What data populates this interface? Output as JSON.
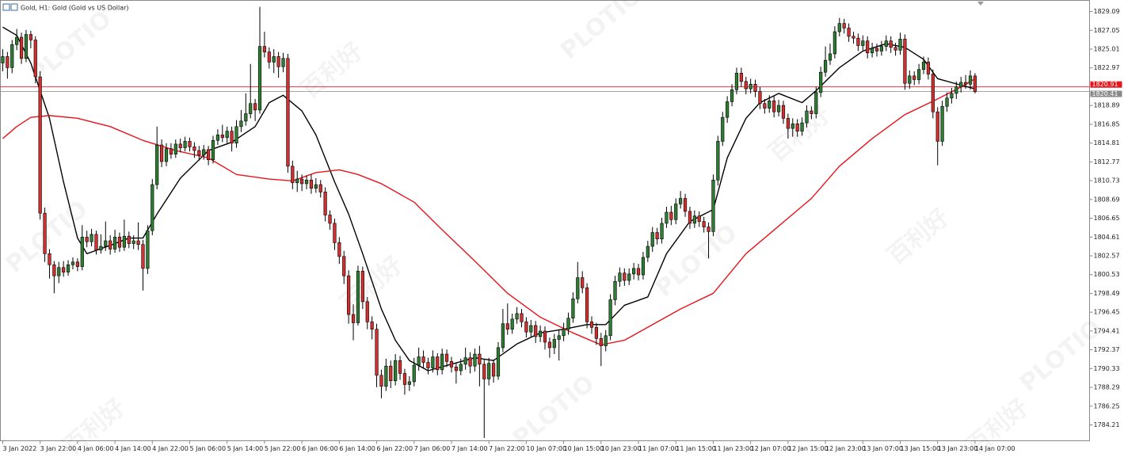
{
  "chart_data": {
    "type": "candlestick",
    "title": "Gold, H1:  Gold (Gold vs US Dollar)",
    "open": [
      1823.5,
      1824.2,
      1823.0,
      1825.5,
      1826.3,
      1824.0,
      1826.6,
      1826.0,
      1822.0,
      1807.2,
      1802.8,
      1801.6,
      1800.4,
      1801.3,
      1800.8,
      1801.6,
      1801.9,
      1801.4,
      1804.6,
      1804.1,
      1804.9,
      1803.2,
      1803.6,
      1804.2,
      1803.3,
      1804.6,
      1803.5,
      1804.7,
      1803.9,
      1804.2,
      1803.8,
      1801.2,
      1805.3,
      1810.3,
      1814.6,
      1812.8,
      1814.2,
      1813.6,
      1814.7,
      1814.3,
      1815.0,
      1814.4,
      1814.0,
      1813.5,
      1814.1,
      1813.0,
      1815.1,
      1815.7,
      1815.4,
      1816.1,
      1814.8,
      1816.6,
      1817.2,
      1818.0,
      1819.1,
      1818.4,
      1825.3,
      1824.7,
      1823.6,
      1824.2,
      1823.1,
      1824.0,
      1812.3,
      1810.5,
      1810.9,
      1810.4,
      1810.8,
      1809.9,
      1810.3,
      1809.5,
      1807.0,
      1806.1,
      1804.0,
      1802.5,
      1800.4,
      1796.2,
      1795.3,
      1800.9,
      1797.6,
      1795.4,
      1794.6,
      1789.6,
      1788.4,
      1790.6,
      1789.0,
      1791.2,
      1789.8,
      1788.6,
      1788.9,
      1790.7,
      1791.6,
      1791.0,
      1790.4,
      1791.6,
      1790.2,
      1791.9,
      1791.1,
      1790.5,
      1790.1,
      1790.8,
      1791.5,
      1790.6,
      1791.9,
      1790.8,
      1789.2,
      1790.9,
      1789.5,
      1792.6,
      1795.2,
      1794.6,
      1795.7,
      1796.3,
      1795.4,
      1794.3,
      1795.0,
      1793.8,
      1794.4,
      1793.2,
      1792.6,
      1793.5,
      1793.9,
      1794.6,
      1795.8,
      1797.9,
      1800.2,
      1799.1,
      1795.4,
      1794.8,
      1793.6,
      1792.8,
      1793.9,
      1797.8,
      1799.8,
      1800.7,
      1799.9,
      1800.6,
      1801.2,
      1800.5,
      1802.4,
      1803.6,
      1805.1,
      1804.4,
      1806.1,
      1807.3,
      1806.5,
      1808.2,
      1808.8,
      1807.4,
      1806.1,
      1806.9,
      1806.3,
      1805.7,
      1805.2,
      1810.8,
      1815.0,
      1817.6,
      1819.3,
      1820.6,
      1822.4,
      1821.5,
      1820.7,
      1821.2,
      1820.4,
      1819.1,
      1818.6,
      1819.4,
      1818.2,
      1818.9,
      1817.5,
      1816.4,
      1816.9,
      1816.1,
      1817.0,
      1818.3,
      1818.0,
      1820.3,
      1822.5,
      1823.8,
      1824.5,
      1826.9,
      1827.8,
      1827.3,
      1826.4,
      1826.2,
      1825.4,
      1825.9,
      1824.6,
      1825.1,
      1824.8,
      1825.3,
      1825.9,
      1825.2,
      1824.9,
      1826.1,
      1821.3,
      1822.1,
      1821.7,
      1822.8,
      1823.6,
      1822.3,
      1818.2,
      1815.0,
      1818.8,
      1819.7,
      1820.2,
      1820.9,
      1821.4,
      1821.2,
      1822.1
    ],
    "high": [
      1825.0,
      1824.7,
      1826.0,
      1827.2,
      1826.8,
      1827.1,
      1827.0,
      1826.4,
      1822.6,
      1807.8,
      1803.3,
      1802.0,
      1801.9,
      1802.0,
      1802.1,
      1802.4,
      1802.3,
      1805.9,
      1805.3,
      1805.5,
      1805.3,
      1804.9,
      1806.3,
      1804.8,
      1805.4,
      1805.1,
      1806.5,
      1805.2,
      1804.8,
      1806.2,
      1804.3,
      1805.9,
      1810.9,
      1816.6,
      1815.2,
      1814.8,
      1814.8,
      1815.2,
      1815.3,
      1815.5,
      1815.4,
      1814.9,
      1814.5,
      1814.6,
      1814.5,
      1815.6,
      1816.3,
      1816.8,
      1816.6,
      1816.6,
      1817.3,
      1818.4,
      1820.2,
      1823.4,
      1819.6,
      1829.6,
      1826.9,
      1825.2,
      1825.0,
      1824.7,
      1824.6,
      1824.5,
      1812.9,
      1811.8,
      1811.4,
      1811.3,
      1811.4,
      1811.0,
      1810.8,
      1810.0,
      1807.5,
      1806.6,
      1804.6,
      1803.1,
      1801.0,
      1797.3,
      1801.5,
      1801.4,
      1798.1,
      1796.0,
      1795.2,
      1790.2,
      1791.4,
      1791.2,
      1791.9,
      1791.7,
      1790.3,
      1789.5,
      1791.5,
      1792.6,
      1792.3,
      1791.5,
      1792.3,
      1792.0,
      1792.5,
      1792.4,
      1791.6,
      1791.0,
      1791.4,
      1792.6,
      1792.1,
      1792.5,
      1792.8,
      1791.3,
      1791.5,
      1791.3,
      1793.2,
      1796.8,
      1797.4,
      1796.3,
      1797.0,
      1796.8,
      1795.9,
      1795.6,
      1795.5,
      1795.0,
      1794.9,
      1793.7,
      1794.1,
      1794.6,
      1795.3,
      1796.4,
      1798.6,
      1801.9,
      1800.9,
      1799.6,
      1796.0,
      1795.3,
      1794.2,
      1794.5,
      1798.4,
      1800.4,
      1801.3,
      1801.2,
      1801.2,
      1801.8,
      1801.7,
      1803.0,
      1804.2,
      1805.7,
      1805.6,
      1806.7,
      1807.9,
      1808.0,
      1808.8,
      1809.6,
      1809.3,
      1807.9,
      1807.5,
      1807.4,
      1806.8,
      1806.2,
      1811.4,
      1815.6,
      1818.2,
      1819.9,
      1821.2,
      1823.0,
      1823.0,
      1822.0,
      1821.8,
      1821.7,
      1820.9,
      1819.6,
      1820.0,
      1819.9,
      1819.5,
      1819.4,
      1818.0,
      1817.5,
      1817.4,
      1817.6,
      1818.9,
      1818.8,
      1820.9,
      1823.1,
      1825.3,
      1825.6,
      1827.5,
      1828.4,
      1828.3,
      1827.8,
      1826.9,
      1826.7,
      1826.5,
      1826.4,
      1825.7,
      1825.6,
      1825.9,
      1826.5,
      1826.4,
      1825.7,
      1826.8,
      1826.6,
      1822.7,
      1822.6,
      1823.4,
      1824.2,
      1824.1,
      1822.8,
      1818.7,
      1819.4,
      1820.3,
      1820.8,
      1821.5,
      1822.0,
      1822.2,
      1822.7,
      1822.4
    ],
    "low": [
      1822.6,
      1821.8,
      1822.4,
      1824.9,
      1823.4,
      1823.6,
      1825.1,
      1821.3,
      1806.5,
      1801.9,
      1800.1,
      1798.5,
      1799.6,
      1800.3,
      1800.4,
      1801.1,
      1800.9,
      1801.0,
      1803.5,
      1803.6,
      1802.7,
      1802.8,
      1803.1,
      1802.7,
      1802.9,
      1803.0,
      1803.1,
      1803.4,
      1803.3,
      1803.2,
      1798.8,
      1800.6,
      1804.8,
      1809.8,
      1812.2,
      1812.3,
      1813.1,
      1813.2,
      1813.8,
      1813.9,
      1813.9,
      1813.2,
      1812.9,
      1813.0,
      1812.4,
      1812.6,
      1814.6,
      1814.9,
      1814.8,
      1813.9,
      1814.3,
      1816.0,
      1816.7,
      1817.5,
      1817.2,
      1818.0,
      1824.1,
      1822.9,
      1822.4,
      1821.9,
      1822.5,
      1811.6,
      1809.8,
      1809.5,
      1809.6,
      1809.8,
      1809.3,
      1809.4,
      1808.9,
      1806.3,
      1805.4,
      1803.2,
      1801.7,
      1799.5,
      1795.2,
      1793.4,
      1795.0,
      1796.8,
      1794.6,
      1793.5,
      1788.3,
      1787.1,
      1787.9,
      1788.2,
      1788.5,
      1789.1,
      1787.5,
      1787.9,
      1788.4,
      1790.1,
      1790.4,
      1789.7,
      1789.9,
      1789.6,
      1789.7,
      1790.5,
      1789.9,
      1788.7,
      1789.6,
      1790.2,
      1789.8,
      1790.0,
      1788.4,
      1782.8,
      1788.5,
      1788.8,
      1789.1,
      1792.1,
      1794.0,
      1794.1,
      1795.2,
      1794.8,
      1793.7,
      1793.8,
      1793.1,
      1793.2,
      1792.4,
      1791.5,
      1791.9,
      1791.2,
      1793.3,
      1794.0,
      1795.3,
      1797.4,
      1798.5,
      1794.7,
      1794.1,
      1792.9,
      1790.6,
      1792.2,
      1793.4,
      1797.2,
      1799.2,
      1799.3,
      1799.4,
      1800.0,
      1799.9,
      1800.0,
      1801.9,
      1803.0,
      1803.8,
      1803.9,
      1805.6,
      1805.9,
      1806.0,
      1807.7,
      1806.8,
      1805.5,
      1805.6,
      1805.7,
      1805.1,
      1802.3,
      1804.7,
      1810.2,
      1814.5,
      1817.0,
      1818.8,
      1820.1,
      1820.9,
      1820.1,
      1820.2,
      1819.8,
      1818.5,
      1818.0,
      1818.1,
      1817.6,
      1817.7,
      1816.9,
      1815.3,
      1815.5,
      1815.5,
      1815.6,
      1816.5,
      1817.4,
      1817.5,
      1819.8,
      1822.0,
      1823.3,
      1824.0,
      1826.4,
      1826.7,
      1825.8,
      1825.6,
      1824.8,
      1824.9,
      1824.0,
      1824.1,
      1824.2,
      1824.3,
      1824.8,
      1824.6,
      1824.3,
      1824.4,
      1820.6,
      1820.7,
      1821.1,
      1821.2,
      1822.3,
      1821.7,
      1817.5,
      1812.4,
      1814.5,
      1818.2,
      1819.1,
      1819.6,
      1820.3,
      1820.7,
      1820.6,
      1820.2
    ],
    "close": [
      1824.2,
      1823.0,
      1825.5,
      1826.3,
      1824.0,
      1826.6,
      1826.0,
      1822.0,
      1807.2,
      1802.8,
      1801.6,
      1800.4,
      1801.3,
      1800.8,
      1801.6,
      1801.9,
      1801.4,
      1804.6,
      1804.1,
      1804.9,
      1803.2,
      1803.6,
      1804.2,
      1803.3,
      1804.6,
      1803.5,
      1804.7,
      1803.9,
      1804.2,
      1803.8,
      1801.2,
      1805.3,
      1810.3,
      1814.6,
      1812.8,
      1814.2,
      1813.6,
      1814.7,
      1814.3,
      1815.0,
      1814.4,
      1814.0,
      1813.5,
      1814.1,
      1813.0,
      1815.1,
      1815.7,
      1815.4,
      1816.1,
      1814.8,
      1816.6,
      1817.2,
      1818.0,
      1819.1,
      1818.4,
      1825.3,
      1824.7,
      1823.6,
      1824.2,
      1823.1,
      1824.0,
      1812.3,
      1810.5,
      1810.9,
      1810.4,
      1810.8,
      1809.9,
      1810.3,
      1809.5,
      1807.0,
      1806.1,
      1804.0,
      1802.5,
      1800.4,
      1796.2,
      1795.3,
      1800.9,
      1797.6,
      1795.4,
      1794.6,
      1789.6,
      1788.4,
      1790.6,
      1789.0,
      1791.2,
      1789.8,
      1788.6,
      1788.9,
      1790.7,
      1791.6,
      1791.0,
      1790.4,
      1791.6,
      1790.2,
      1791.9,
      1791.1,
      1790.5,
      1790.1,
      1790.8,
      1791.5,
      1790.6,
      1791.9,
      1790.8,
      1789.2,
      1790.9,
      1789.5,
      1792.6,
      1795.2,
      1794.6,
      1795.7,
      1796.3,
      1795.4,
      1794.3,
      1795.0,
      1793.8,
      1794.4,
      1793.2,
      1792.6,
      1793.5,
      1793.9,
      1794.6,
      1795.8,
      1797.9,
      1800.2,
      1799.1,
      1795.4,
      1794.8,
      1793.6,
      1792.8,
      1793.9,
      1797.8,
      1799.8,
      1800.7,
      1799.9,
      1800.6,
      1801.2,
      1800.5,
      1802.4,
      1803.6,
      1805.1,
      1804.4,
      1806.1,
      1807.3,
      1806.5,
      1808.2,
      1808.8,
      1807.4,
      1806.1,
      1806.9,
      1806.3,
      1805.7,
      1805.2,
      1810.8,
      1815.0,
      1817.6,
      1819.3,
      1820.6,
      1822.4,
      1821.5,
      1820.7,
      1821.2,
      1820.4,
      1819.1,
      1818.6,
      1819.4,
      1818.2,
      1818.9,
      1817.5,
      1816.4,
      1816.9,
      1816.1,
      1817.0,
      1818.3,
      1818.0,
      1820.3,
      1822.5,
      1823.8,
      1824.5,
      1826.9,
      1827.8,
      1827.3,
      1826.4,
      1826.2,
      1825.4,
      1825.9,
      1824.6,
      1825.1,
      1824.8,
      1825.3,
      1825.9,
      1825.2,
      1824.9,
      1826.1,
      1821.3,
      1822.1,
      1821.7,
      1822.8,
      1823.6,
      1822.3,
      1818.2,
      1815.0,
      1818.8,
      1819.7,
      1820.2,
      1820.9,
      1821.4,
      1821.2,
      1822.1,
      1820.41
    ],
    "up_color": "#2e7d32",
    "down_color": "#d32f2f",
    "xlim": [
      -0.5,
      232.5
    ],
    "ylim": [
      1782.49,
      1830.3
    ],
    "xticks": [
      {
        "value": 0,
        "label": "3 Jan 2022"
      },
      {
        "value": 8,
        "label": "3 Jan 22:00"
      },
      {
        "value": 16,
        "label": "4 Jan 06:00"
      },
      {
        "value": 24,
        "label": "4 Jan 14:00"
      },
      {
        "value": 32,
        "label": "4 Jan 22:00"
      },
      {
        "value": 40,
        "label": "5 Jan 06:00"
      },
      {
        "value": 48,
        "label": "5 Jan 14:00"
      },
      {
        "value": 56,
        "label": "5 Jan 22:00"
      },
      {
        "value": 64,
        "label": "6 Jan 06:00"
      },
      {
        "value": 72,
        "label": "6 Jan 14:00"
      },
      {
        "value": 80,
        "label": "6 Jan 22:00"
      },
      {
        "value": 88,
        "label": "7 Jan 06:00"
      },
      {
        "value": 96,
        "label": "7 Jan 14:00"
      },
      {
        "value": 104,
        "label": "7 Jan 22:00"
      },
      {
        "value": 112,
        "label": "10 Jan 07:00"
      },
      {
        "value": 120,
        "label": "10 Jan 15:00"
      },
      {
        "value": 128,
        "label": "10 Jan 23:00"
      },
      {
        "value": 136,
        "label": "11 Jan 07:00"
      },
      {
        "value": 144,
        "label": "11 Jan 15:00"
      },
      {
        "value": 152,
        "label": "11 Jan 23:00"
      },
      {
        "value": 160,
        "label": "12 Jan 07:00"
      },
      {
        "value": 168,
        "label": "12 Jan 15:00"
      },
      {
        "value": 176,
        "label": "12 Jan 23:00"
      },
      {
        "value": 184,
        "label": "13 Jan 07:00"
      },
      {
        "value": 192,
        "label": "13 Jan 15:00"
      },
      {
        "value": 200,
        "label": "13 Jan 23:00"
      },
      {
        "value": 208,
        "label": "14 Jan 07:00"
      }
    ],
    "yticks": [
      1784.21,
      1786.25,
      1788.29,
      1790.33,
      1792.37,
      1794.41,
      1796.45,
      1798.49,
      1800.53,
      1802.57,
      1804.61,
      1806.65,
      1808.69,
      1810.73,
      1812.77,
      1814.81,
      1816.85,
      1818.89,
      1822.97,
      1825.01,
      1827.05,
      1829.09
    ],
    "series": [
      {
        "type": "line",
        "color": "#000000",
        "x": [
          0,
          3,
          6,
          10,
          13,
          16,
          18,
          23,
          27,
          30,
          33,
          38,
          44,
          49,
          54,
          57,
          60,
          64,
          67,
          71,
          74,
          77,
          81,
          84,
          87,
          91,
          96,
          101,
          105,
          110,
          115,
          120,
          125,
          129,
          133,
          138,
          142,
          147,
          152,
          155,
          159,
          162,
          166,
          171,
          174,
          179,
          184,
          189,
          193,
          197,
          200,
          205,
          208
        ],
        "values": [
          1827.4,
          1826.5,
          1823.5,
          1817.5,
          1810.6,
          1804.5,
          1802.8,
          1803.7,
          1804.5,
          1804.5,
          1807.1,
          1811.0,
          1814.0,
          1814.9,
          1816.6,
          1819.2,
          1820.0,
          1818.3,
          1815.7,
          1810.6,
          1807.1,
          1802.8,
          1796.8,
          1793.4,
          1791.2,
          1790.1,
          1790.8,
          1791.5,
          1791.2,
          1793.0,
          1794.2,
          1794.6,
          1795.1,
          1795.1,
          1797.2,
          1798.1,
          1802.8,
          1806.3,
          1807.6,
          1813.2,
          1817.5,
          1819.2,
          1820.2,
          1819.2,
          1820.5,
          1823.0,
          1824.8,
          1825.6,
          1825.2,
          1823.9,
          1821.8,
          1821.1,
          1820.7
        ]
      },
      {
        "type": "line",
        "color": "#e8141b",
        "x": [
          0,
          3,
          6,
          10,
          16,
          23,
          30,
          37,
          44,
          50,
          57,
          62,
          67,
          72,
          76,
          81,
          88,
          94,
          101,
          108,
          115,
          122,
          128,
          133,
          139,
          145,
          152,
          159,
          166,
          173,
          179,
          186,
          193,
          200,
          205,
          208
        ],
        "values": [
          1815.3,
          1816.6,
          1817.6,
          1817.8,
          1817.5,
          1816.6,
          1815.1,
          1814.0,
          1813.2,
          1811.4,
          1810.9,
          1810.7,
          1811.6,
          1811.9,
          1811.4,
          1810.4,
          1808.4,
          1805.4,
          1802.0,
          1798.5,
          1795.9,
          1794.2,
          1792.9,
          1793.4,
          1795.1,
          1796.8,
          1798.5,
          1802.8,
          1805.8,
          1808.8,
          1812.3,
          1815.3,
          1817.9,
          1819.6,
          1820.9,
          1821.8
        ]
      }
    ],
    "price_lines": [
      {
        "value": 1820.91,
        "color": "#e8141b"
      },
      {
        "value": 1820.41,
        "color": "#8a8a8a"
      }
    ]
  },
  "watermark": {
    "brand": "PLOTIO",
    "cn": "百利好"
  }
}
